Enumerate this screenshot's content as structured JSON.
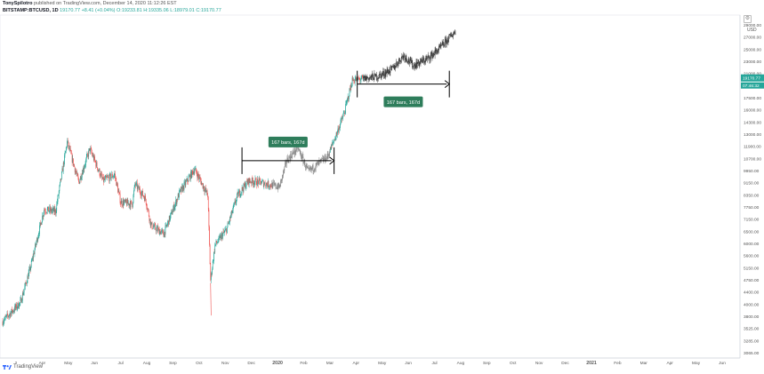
{
  "header": {
    "author": "TonySpilotro",
    "published": "published on TradingView.com, December 14, 2020 11:12:26 EST",
    "symbol": "BITSTAMP:BTCUSD, 1D",
    "open_label": "19170.77",
    "change": "+8.41 (+0.04%)",
    "ohlc": "O:19233.81 H:19335.06 L:18979.01 C:19170.77"
  },
  "brand": {
    "name": "TradingView"
  },
  "axis": {
    "currency": "USD",
    "ticks": [
      "29000.00",
      "27000.00",
      "25000.00",
      "23000.00",
      "21000.00",
      "19000.00",
      "17500.00",
      "16000.00",
      "14300.00",
      "13000.00",
      "11900.00",
      "10700.00",
      "9950.00",
      "9150.00",
      "8350.00",
      "7750.00",
      "7150.00",
      "6500.00",
      "6000.00",
      "5600.00",
      "5150.00",
      "4750.00",
      "4400.00",
      "4000.00",
      "3800.00",
      "3525.00",
      "3285.00",
      "3065.00"
    ],
    "last_price": "19170.77",
    "countdown": "07:46:32"
  },
  "xaxis": {
    "labels": [
      "2",
      "Apr",
      "May",
      "Jun",
      "Jul",
      "Aug",
      "Sep",
      "Oct",
      "Nov",
      "Dec",
      "2020",
      "Feb",
      "Mar",
      "Apr",
      "May",
      "Jun",
      "Jul",
      "Aug",
      "Sep",
      "Oct",
      "Nov",
      "Dec",
      "2021",
      "Feb",
      "Mar",
      "Apr",
      "May",
      "Jun"
    ]
  },
  "annotations": [
    {
      "text": "167 bars, 167d"
    },
    {
      "text": "167 bars, 167d"
    }
  ],
  "colors": {
    "up": "#26a69a",
    "down": "#ef5350",
    "gray": "#888888",
    "dark": "#3a3a3a",
    "label_bg": "#2e7d5b",
    "price_tag": "#26a69a"
  },
  "chart_data": {
    "type": "candlestick",
    "symbol": "BTCUSD",
    "interval": "1D",
    "ylim": [
      3065,
      29000
    ],
    "y_scale": "log",
    "path": [
      {
        "date": "2019-03-01",
        "price": 3700
      },
      {
        "date": "2019-04-02",
        "price": 4200
      },
      {
        "date": "2019-04-20",
        "price": 5300
      },
      {
        "date": "2019-05-15",
        "price": 7900
      },
      {
        "date": "2019-06-05",
        "price": 7800
      },
      {
        "date": "2019-06-26",
        "price": 12500
      },
      {
        "date": "2019-07-17",
        "price": 9500
      },
      {
        "date": "2019-08-06",
        "price": 11900
      },
      {
        "date": "2019-08-30",
        "price": 9600
      },
      {
        "date": "2019-09-20",
        "price": 10000
      },
      {
        "date": "2019-10-01",
        "price": 8300
      },
      {
        "date": "2019-10-22",
        "price": 8200
      },
      {
        "date": "2019-10-27",
        "price": 9400
      },
      {
        "date": "2019-11-15",
        "price": 8500
      },
      {
        "date": "2019-11-25",
        "price": 7100
      },
      {
        "date": "2019-12-18",
        "price": 6700
      },
      {
        "date": "2020-01-15",
        "price": 8800
      },
      {
        "date": "2020-02-12",
        "price": 10400
      },
      {
        "date": "2020-03-07",
        "price": 8700
      },
      {
        "date": "2020-03-12",
        "price": 4900
      },
      {
        "date": "2020-03-20",
        "price": 6200
      },
      {
        "date": "2020-04-10",
        "price": 6900
      },
      {
        "date": "2020-04-30",
        "price": 8700
      },
      {
        "date": "2020-05-20",
        "price": 9600
      },
      {
        "date": "2020-06-10",
        "price": 9500
      },
      {
        "date": "2020-07-15",
        "price": 9200
      },
      {
        "date": "2020-07-28",
        "price": 11000
      },
      {
        "date": "2020-08-17",
        "price": 12000
      },
      {
        "date": "2020-09-05",
        "price": 10200
      },
      {
        "date": "2020-10-10",
        "price": 11300
      },
      {
        "date": "2020-10-25",
        "price": 13000
      },
      {
        "date": "2020-11-10",
        "price": 15300
      },
      {
        "date": "2020-11-24",
        "price": 19000
      },
      {
        "date": "2020-12-14",
        "price": 19170
      }
    ],
    "projection_path": [
      {
        "date": "2020-12-14",
        "price": 19200
      },
      {
        "date": "2021-01-10",
        "price": 19500
      },
      {
        "date": "2021-02-05",
        "price": 20500
      },
      {
        "date": "2021-02-25",
        "price": 22500
      },
      {
        "date": "2021-03-15",
        "price": 21000
      },
      {
        "date": "2021-04-10",
        "price": 22000
      },
      {
        "date": "2021-05-01",
        "price": 23500
      },
      {
        "date": "2021-05-30",
        "price": 26500
      }
    ],
    "ranges": [
      {
        "label": "167 bars, 167d",
        "start": "2020-05-08",
        "end": "2020-10-22",
        "price": 11000
      },
      {
        "label": "167 bars, 167d",
        "start": "2020-12-03",
        "end": "2021-05-19",
        "price": 18500
      }
    ],
    "last_price": 19170.77
  }
}
